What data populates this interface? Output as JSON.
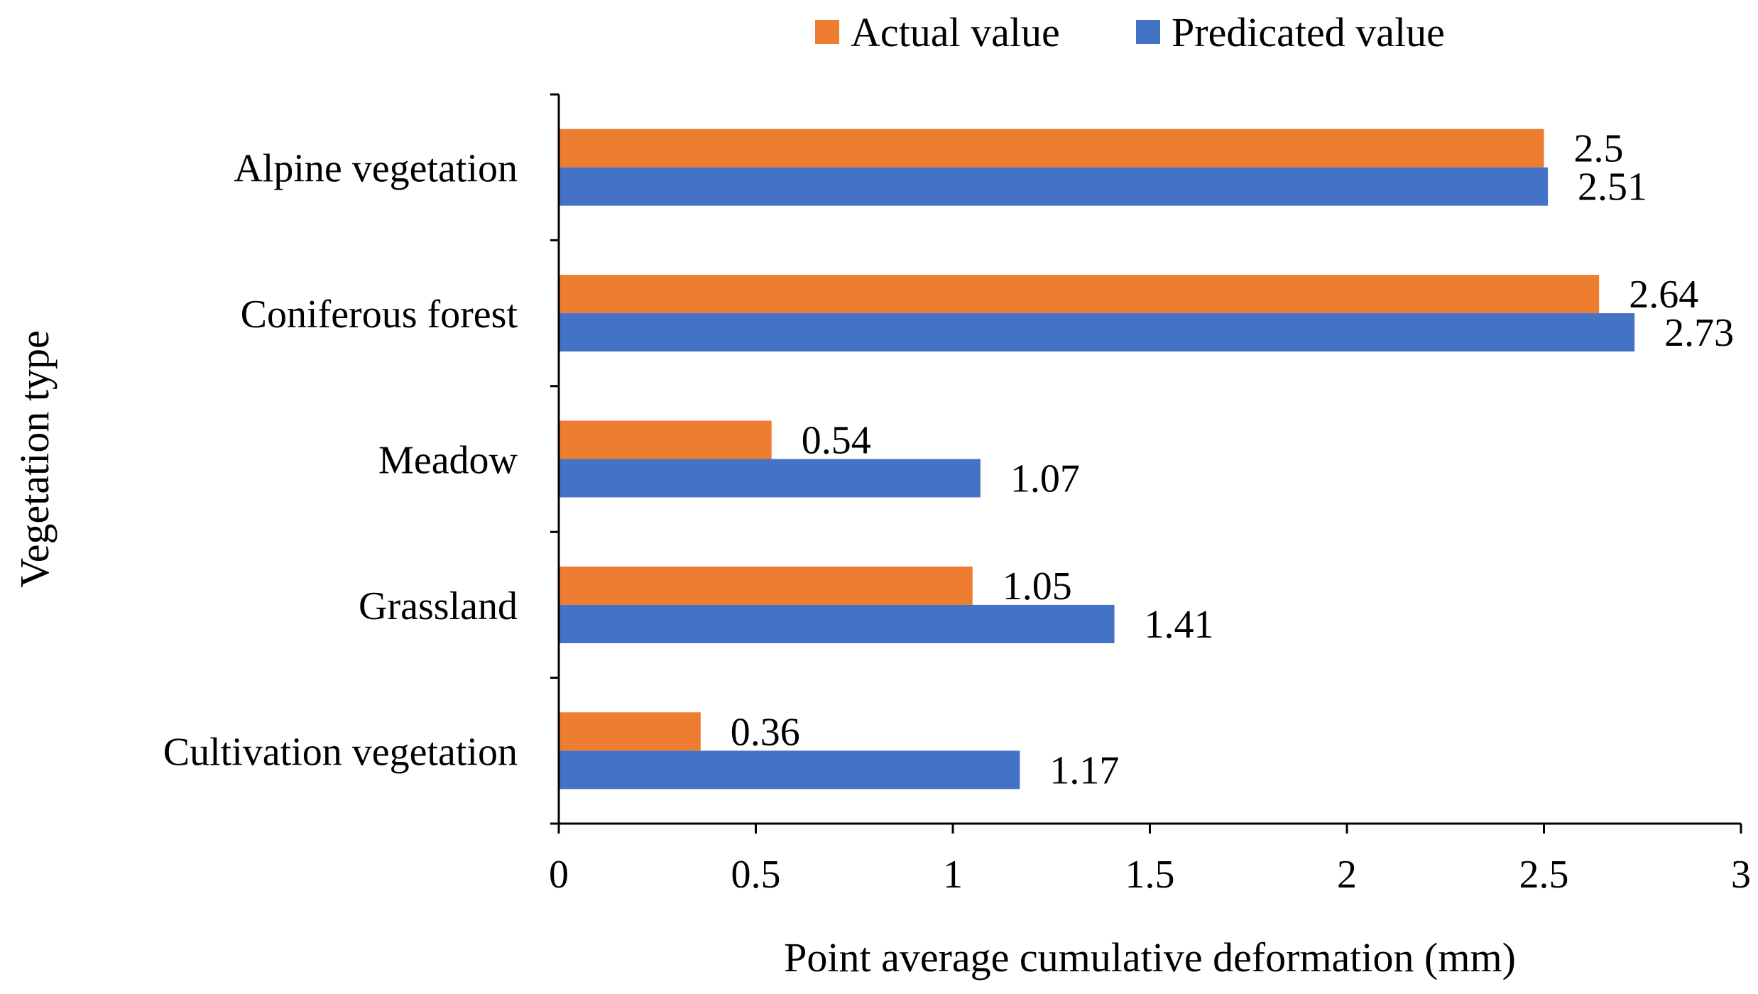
{
  "chart_data": {
    "type": "bar",
    "orientation": "horizontal",
    "categories": [
      "Alpine vegetation",
      "Coniferous forest",
      "Meadow",
      "Grassland",
      "Cultivation vegetation"
    ],
    "series": [
      {
        "name": "Actual value",
        "color": "#ED7D31",
        "values": [
          2.5,
          2.64,
          0.54,
          1.05,
          0.36
        ],
        "labels": [
          "2.5",
          "2.64",
          "0.54",
          "1.05",
          "0.36"
        ]
      },
      {
        "name": "Predicated value",
        "color": "#4472C4",
        "values": [
          2.51,
          2.73,
          1.07,
          1.41,
          1.17
        ],
        "labels": [
          "2.51",
          "2.73",
          "1.07",
          "1.41",
          "1.17"
        ]
      }
    ],
    "xlabel": "Point average cumulative deformation (mm)",
    "ylabel": "Vegetation type",
    "xlim": [
      0,
      3
    ],
    "xticks": [
      0,
      0.5,
      1,
      1.5,
      2,
      2.5,
      3
    ],
    "xtick_labels": [
      "0",
      "0.5",
      "1",
      "1.5",
      "2",
      "2.5",
      "3"
    ],
    "grid": false,
    "legend_position": "top"
  }
}
